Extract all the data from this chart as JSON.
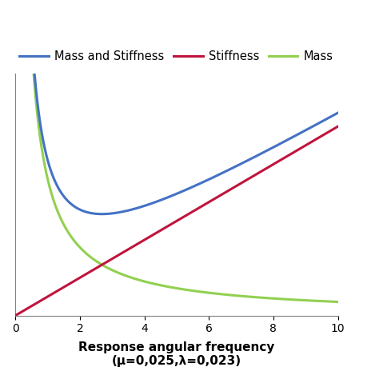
{
  "mu": 0.025,
  "lambda": 0.023,
  "xlim": [
    0,
    10
  ],
  "ylim": [
    0,
    0.32
  ],
  "xticks": [
    0,
    2,
    4,
    6,
    8,
    10
  ],
  "xlabel_line1": "Response angular frequency",
  "xlabel_line2": "(μ=0,025,λ=0,023)",
  "legend_labels": [
    "Mass and Stiffness",
    "Stiffness",
    "Mass"
  ],
  "colors": {
    "mass_stiffness": "#4472C4",
    "stiffness": "#C0143C",
    "mass": "#92D050"
  },
  "line_width": 2.2,
  "background_color": "#FFFFFF",
  "grid_color": "#C0C0C0",
  "legend_fontsize": 10.5,
  "xlabel_fontsize": 11,
  "tick_fontsize": 10,
  "coeff_stiffness": 0.025,
  "coeff_mass": 0.18,
  "figsize": [
    4.74,
    4.74
  ],
  "dpi": 100
}
